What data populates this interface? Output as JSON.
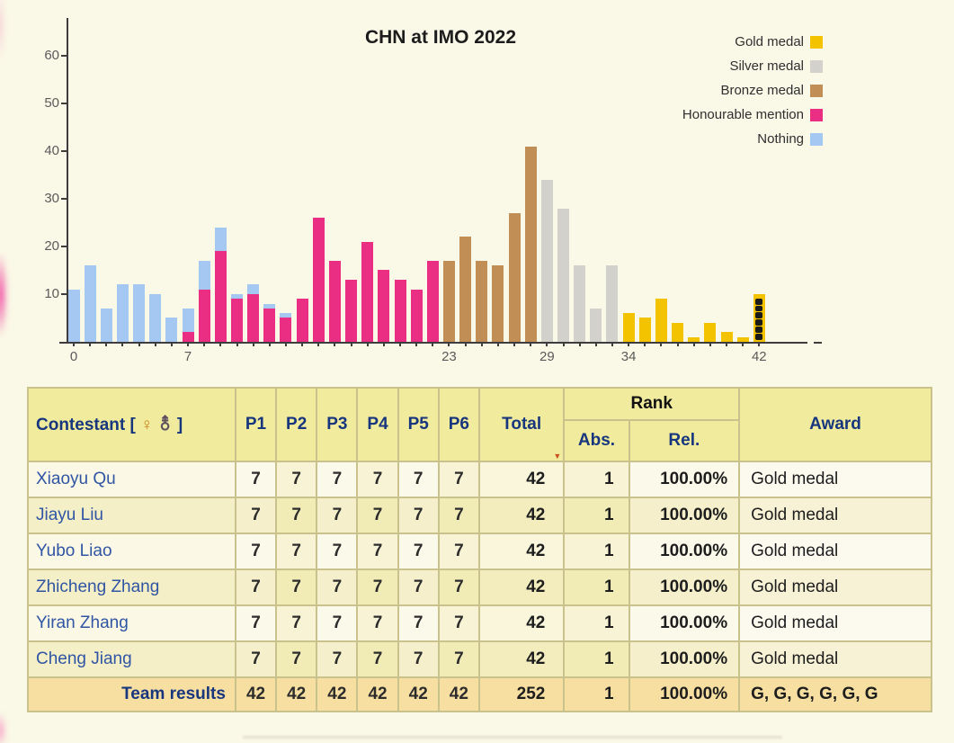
{
  "chart_data": {
    "type": "bar",
    "title": "CHN at IMO 2022",
    "xlim": [
      0,
      42
    ],
    "ylim": [
      0,
      65
    ],
    "y_ticks": [
      10,
      20,
      30,
      40,
      50,
      60
    ],
    "x_tick_labels": [
      0,
      7,
      23,
      29,
      34,
      42
    ],
    "grid": false,
    "legend_position": "top-right",
    "legend": [
      {
        "key": "gold",
        "label": "Gold medal",
        "color": "#F3C300"
      },
      {
        "key": "silver",
        "label": "Silver medal",
        "color": "#D2D1CB"
      },
      {
        "key": "bronze",
        "label": "Bronze medal",
        "color": "#C18E55"
      },
      {
        "key": "hm",
        "label": "Honourable mention",
        "color": "#EA2E83"
      },
      {
        "key": "nothing",
        "label": "Nothing",
        "color": "#A5C8F2"
      }
    ],
    "bars": [
      {
        "score": 0,
        "segments": [
          {
            "award": "nothing",
            "count": 11
          }
        ]
      },
      {
        "score": 1,
        "segments": [
          {
            "award": "nothing",
            "count": 16
          }
        ]
      },
      {
        "score": 2,
        "segments": [
          {
            "award": "nothing",
            "count": 7
          }
        ]
      },
      {
        "score": 3,
        "segments": [
          {
            "award": "nothing",
            "count": 12
          }
        ]
      },
      {
        "score": 4,
        "segments": [
          {
            "award": "nothing",
            "count": 12
          }
        ]
      },
      {
        "score": 5,
        "segments": [
          {
            "award": "nothing",
            "count": 10
          }
        ]
      },
      {
        "score": 6,
        "segments": [
          {
            "award": "nothing",
            "count": 5
          }
        ]
      },
      {
        "score": 7,
        "segments": [
          {
            "award": "hm",
            "count": 2
          },
          {
            "award": "nothing",
            "count": 5
          }
        ]
      },
      {
        "score": 8,
        "segments": [
          {
            "award": "hm",
            "count": 11
          },
          {
            "award": "nothing",
            "count": 6
          }
        ]
      },
      {
        "score": 9,
        "segments": [
          {
            "award": "hm",
            "count": 19
          },
          {
            "award": "nothing",
            "count": 5
          }
        ]
      },
      {
        "score": 10,
        "segments": [
          {
            "award": "hm",
            "count": 9
          },
          {
            "award": "nothing",
            "count": 1
          }
        ]
      },
      {
        "score": 11,
        "segments": [
          {
            "award": "hm",
            "count": 10
          },
          {
            "award": "nothing",
            "count": 2
          }
        ]
      },
      {
        "score": 12,
        "segments": [
          {
            "award": "hm",
            "count": 7
          },
          {
            "award": "nothing",
            "count": 1
          }
        ]
      },
      {
        "score": 13,
        "segments": [
          {
            "award": "hm",
            "count": 5
          },
          {
            "award": "nothing",
            "count": 1
          }
        ]
      },
      {
        "score": 14,
        "segments": [
          {
            "award": "hm",
            "count": 9
          }
        ]
      },
      {
        "score": 15,
        "segments": [
          {
            "award": "hm",
            "count": 26
          }
        ]
      },
      {
        "score": 16,
        "segments": [
          {
            "award": "hm",
            "count": 17
          }
        ]
      },
      {
        "score": 17,
        "segments": [
          {
            "award": "hm",
            "count": 13
          }
        ]
      },
      {
        "score": 18,
        "segments": [
          {
            "award": "hm",
            "count": 21
          }
        ]
      },
      {
        "score": 19,
        "segments": [
          {
            "award": "hm",
            "count": 15
          }
        ]
      },
      {
        "score": 20,
        "segments": [
          {
            "award": "hm",
            "count": 13
          }
        ]
      },
      {
        "score": 21,
        "segments": [
          {
            "award": "hm",
            "count": 11
          }
        ]
      },
      {
        "score": 22,
        "segments": [
          {
            "award": "hm",
            "count": 17
          }
        ]
      },
      {
        "score": 23,
        "segments": [
          {
            "award": "bronze",
            "count": 17
          }
        ]
      },
      {
        "score": 24,
        "segments": [
          {
            "award": "bronze",
            "count": 22
          }
        ]
      },
      {
        "score": 25,
        "segments": [
          {
            "award": "bronze",
            "count": 17
          }
        ]
      },
      {
        "score": 26,
        "segments": [
          {
            "award": "bronze",
            "count": 16
          }
        ]
      },
      {
        "score": 27,
        "segments": [
          {
            "award": "bronze",
            "count": 27
          }
        ]
      },
      {
        "score": 28,
        "segments": [
          {
            "award": "bronze",
            "count": 41
          }
        ]
      },
      {
        "score": 29,
        "segments": [
          {
            "award": "silver",
            "count": 34
          }
        ]
      },
      {
        "score": 30,
        "segments": [
          {
            "award": "silver",
            "count": 28
          }
        ]
      },
      {
        "score": 31,
        "segments": [
          {
            "award": "silver",
            "count": 16
          }
        ]
      },
      {
        "score": 32,
        "segments": [
          {
            "award": "silver",
            "count": 7
          }
        ]
      },
      {
        "score": 33,
        "segments": [
          {
            "award": "silver",
            "count": 16
          }
        ]
      },
      {
        "score": 34,
        "segments": [
          {
            "award": "gold",
            "count": 6
          }
        ]
      },
      {
        "score": 35,
        "segments": [
          {
            "award": "gold",
            "count": 5
          }
        ]
      },
      {
        "score": 36,
        "segments": [
          {
            "award": "gold",
            "count": 9
          }
        ]
      },
      {
        "score": 37,
        "segments": [
          {
            "award": "gold",
            "count": 4
          }
        ]
      },
      {
        "score": 38,
        "segments": [
          {
            "award": "gold",
            "count": 1
          }
        ]
      },
      {
        "score": 39,
        "segments": [
          {
            "award": "gold",
            "count": 4
          }
        ]
      },
      {
        "score": 40,
        "segments": [
          {
            "award": "gold",
            "count": 2
          }
        ]
      },
      {
        "score": 41,
        "segments": [
          {
            "award": "gold",
            "count": 1
          }
        ]
      },
      {
        "score": 42,
        "segments": [
          {
            "award": "gold",
            "count": 10
          }
        ]
      }
    ],
    "team_markers": {
      "score": 42,
      "count": 6,
      "color": "#1a1a1a"
    }
  },
  "table": {
    "contestant_header": "Contestant",
    "bracket_open": "[",
    "female_symbol": "♀",
    "male_symbol": "⚨",
    "bracket_close": "]",
    "problem_headers": [
      "P1",
      "P2",
      "P3",
      "P4",
      "P5",
      "P6"
    ],
    "total_header": "Total",
    "sort_indicator": "▼",
    "rank_header": "Rank",
    "abs_header": "Abs.",
    "rel_header": "Rel.",
    "award_header": "Award",
    "rows": [
      {
        "name": "Xiaoyu Qu",
        "p": [
          7,
          7,
          7,
          7,
          7,
          7
        ],
        "total": 42,
        "abs": 1,
        "rel": "100.00%",
        "award": "Gold medal"
      },
      {
        "name": "Jiayu Liu",
        "p": [
          7,
          7,
          7,
          7,
          7,
          7
        ],
        "total": 42,
        "abs": 1,
        "rel": "100.00%",
        "award": "Gold medal"
      },
      {
        "name": "Yubo Liao",
        "p": [
          7,
          7,
          7,
          7,
          7,
          7
        ],
        "total": 42,
        "abs": 1,
        "rel": "100.00%",
        "award": "Gold medal"
      },
      {
        "name": "Zhicheng Zhang",
        "p": [
          7,
          7,
          7,
          7,
          7,
          7
        ],
        "total": 42,
        "abs": 1,
        "rel": "100.00%",
        "award": "Gold medal"
      },
      {
        "name": "Yiran Zhang",
        "p": [
          7,
          7,
          7,
          7,
          7,
          7
        ],
        "total": 42,
        "abs": 1,
        "rel": "100.00%",
        "award": "Gold medal"
      },
      {
        "name": "Cheng Jiang",
        "p": [
          7,
          7,
          7,
          7,
          7,
          7
        ],
        "total": 42,
        "abs": 1,
        "rel": "100.00%",
        "award": "Gold medal"
      }
    ],
    "team_row": {
      "label": "Team results",
      "p": [
        42,
        42,
        42,
        42,
        42,
        42
      ],
      "total": 252,
      "abs": 1,
      "rel": "100.00%",
      "award": "G, G, G, G, G, G"
    }
  }
}
